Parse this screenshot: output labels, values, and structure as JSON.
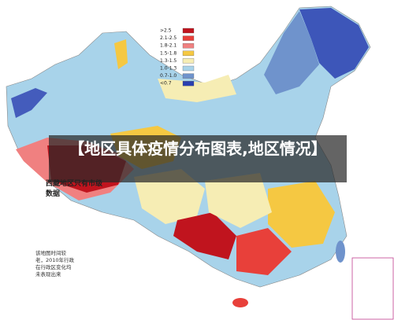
{
  "title": "【地区具体疫情分布图表,地区情况】",
  "legend": [
    {
      "label": ">2.5",
      "color": "#c0141e"
    },
    {
      "label": "2.1-2.5",
      "color": "#e8403a"
    },
    {
      "label": "1.8-2.1",
      "color": "#f08080"
    },
    {
      "label": "1.5-1.8",
      "color": "#f5c842"
    },
    {
      "label": "1.3-1.5",
      "color": "#f6edb4"
    },
    {
      "label": "1.0-1.3",
      "color": "#a8d3ea"
    },
    {
      "label": "0.7-1.0",
      "color": "#6f93cc"
    },
    {
      "label": "<0.7",
      "color": "#2a3fb0"
    }
  ],
  "tibet_note": "西藏地区只有市级数据",
  "map_note": [
    "该地图时间较",
    "老，2010年行政",
    "在行政区变化均",
    "未表现出来"
  ]
}
